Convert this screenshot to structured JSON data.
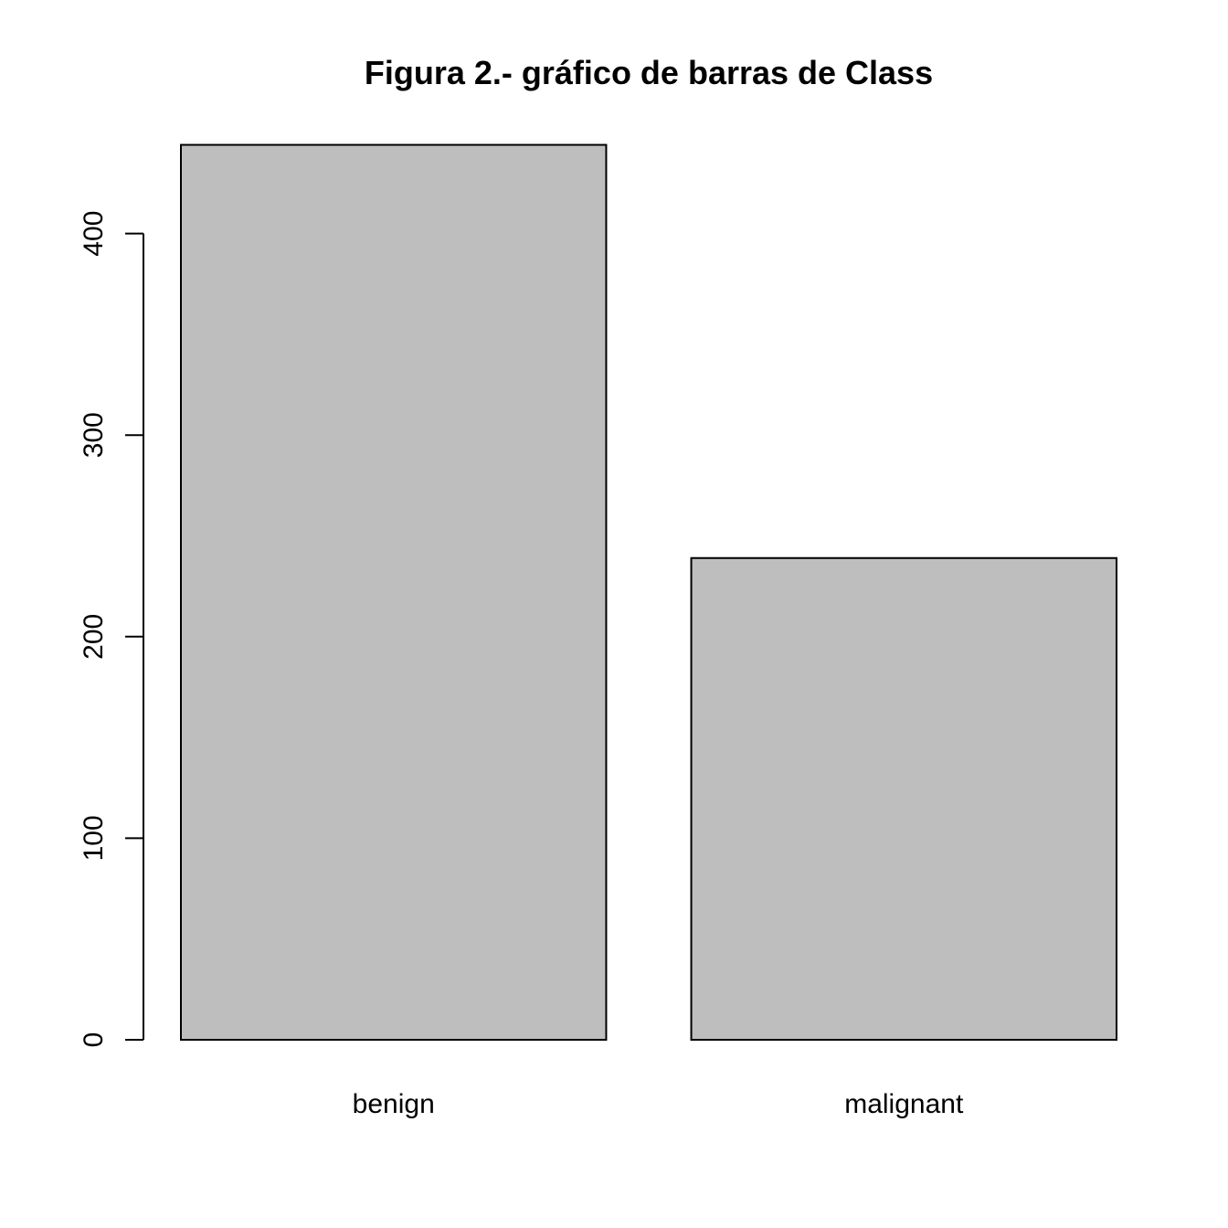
{
  "chart_data": {
    "type": "bar",
    "title": "Figura 2.- gráfico de barras de Class",
    "xlabel": "",
    "ylabel": "",
    "categories": [
      "benign",
      "malignant"
    ],
    "values": [
      444,
      239
    ],
    "y_ticks": [
      0,
      100,
      200,
      300,
      400
    ],
    "ylim": [
      0,
      444
    ],
    "grid": false,
    "bar_color": "#BEBEBE",
    "border_color": "#000000"
  }
}
